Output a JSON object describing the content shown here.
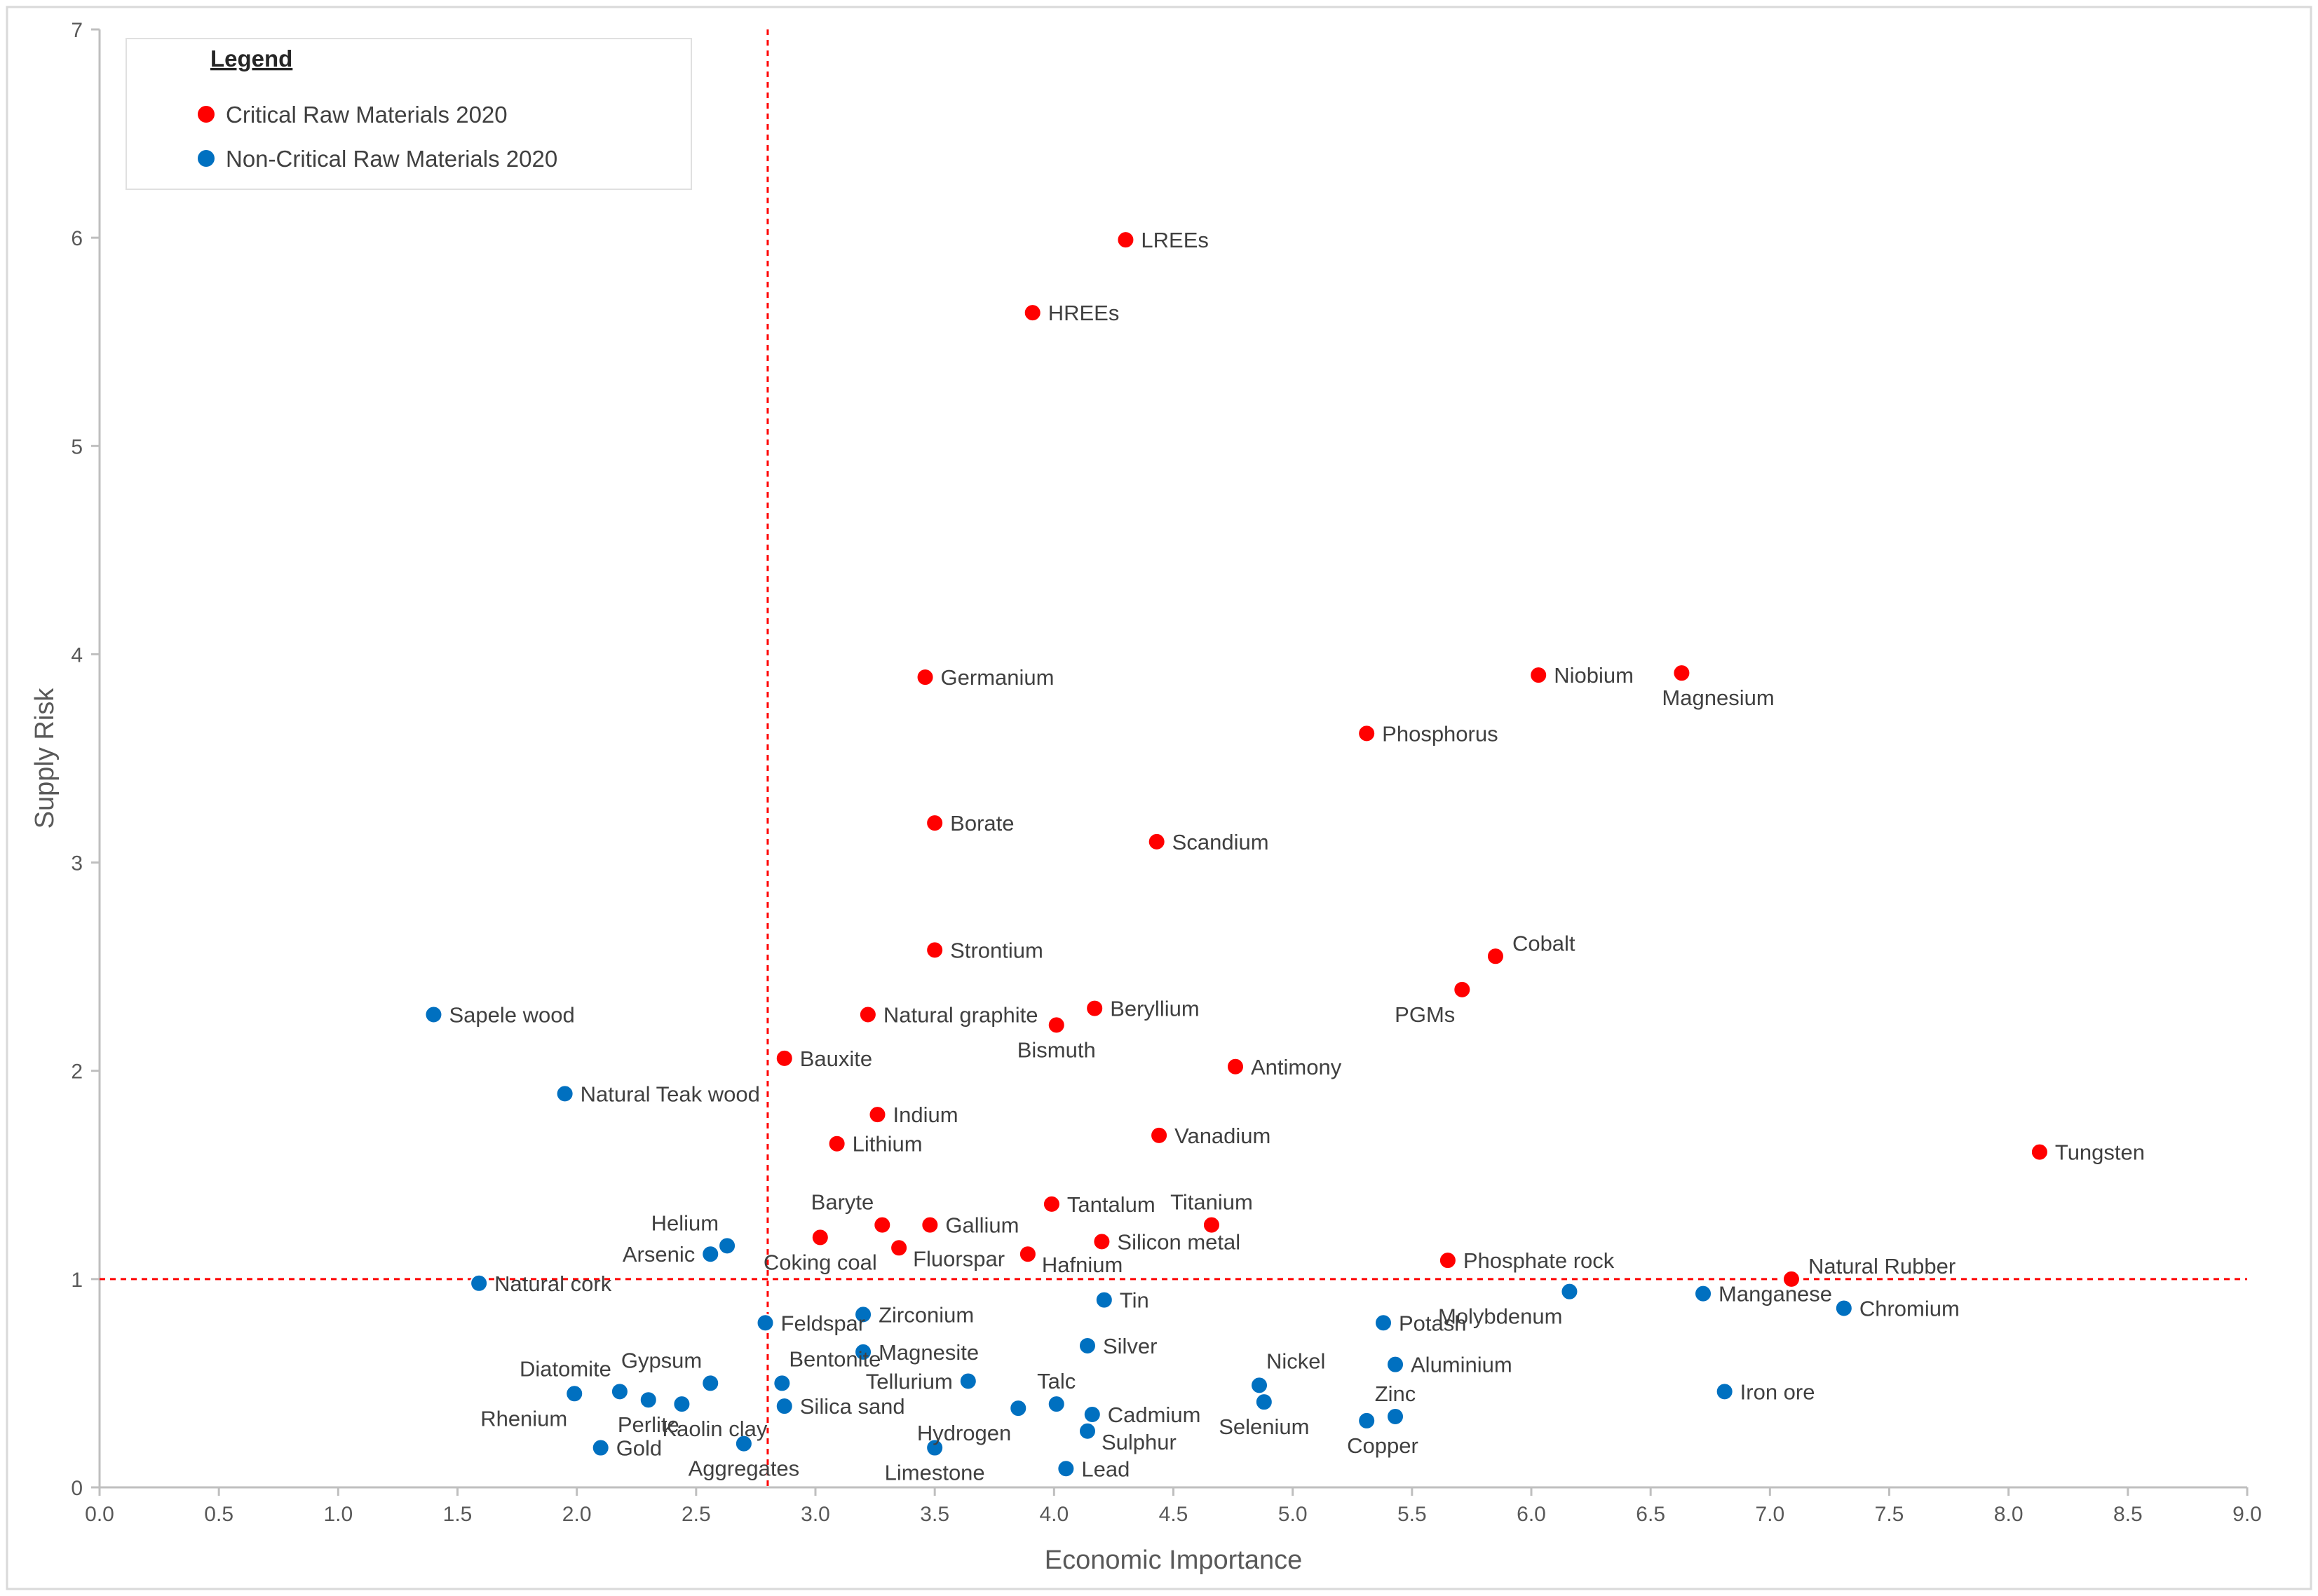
{
  "chart_data": {
    "type": "scatter",
    "title": "",
    "xlabel": "Economic Importance",
    "ylabel": "Supply Risk",
    "xlim": [
      0.0,
      9.0
    ],
    "ylim": [
      0,
      7
    ],
    "xticks": [
      "0.0",
      "0.5",
      "1.0",
      "1.5",
      "2.0",
      "2.5",
      "3.0",
      "3.5",
      "4.0",
      "4.5",
      "5.0",
      "5.5",
      "6.0",
      "6.5",
      "7.0",
      "7.5",
      "8.0",
      "8.5",
      "9.0"
    ],
    "yticks": [
      "0",
      "1",
      "2",
      "3",
      "4",
      "5",
      "6",
      "7"
    ],
    "thresholds": {
      "economic_importance": 2.8,
      "supply_risk": 1.0
    },
    "legend": {
      "title": "Legend",
      "placement": "top-left",
      "entries": [
        {
          "name": "Critical Raw Materials 2020",
          "color": "#ff0000"
        },
        {
          "name": "Non-Critical Raw Materials 2020",
          "color": "#0070c0"
        }
      ]
    },
    "series": [
      {
        "name": "Critical Raw Materials 2020",
        "color": "#ff0000",
        "points": [
          {
            "label": "LREEs",
            "x": 4.3,
            "y": 5.99,
            "pos": "right"
          },
          {
            "label": "HREEs",
            "x": 3.91,
            "y": 5.64,
            "pos": "right"
          },
          {
            "label": "Germanium",
            "x": 3.46,
            "y": 3.89,
            "pos": "right"
          },
          {
            "label": "Niobium",
            "x": 6.03,
            "y": 3.9,
            "pos": "right"
          },
          {
            "label": "Magnesium",
            "x": 6.63,
            "y": 3.91,
            "pos": "below-right"
          },
          {
            "label": "Phosphorus",
            "x": 5.31,
            "y": 3.62,
            "pos": "right"
          },
          {
            "label": "Borate",
            "x": 3.5,
            "y": 3.19,
            "pos": "right"
          },
          {
            "label": "Scandium",
            "x": 4.43,
            "y": 3.1,
            "pos": "right"
          },
          {
            "label": "Strontium",
            "x": 3.5,
            "y": 2.58,
            "pos": "right"
          },
          {
            "label": "Cobalt",
            "x": 5.85,
            "y": 2.55,
            "pos": "right-up"
          },
          {
            "label": "PGMs",
            "x": 5.71,
            "y": 2.39,
            "pos": "below-left"
          },
          {
            "label": "Natural graphite",
            "x": 3.22,
            "y": 2.27,
            "pos": "right"
          },
          {
            "label": "Beryllium",
            "x": 4.17,
            "y": 2.3,
            "pos": "right"
          },
          {
            "label": "Bismuth",
            "x": 4.01,
            "y": 2.22,
            "pos": "below"
          },
          {
            "label": "Bauxite",
            "x": 2.87,
            "y": 2.06,
            "pos": "right"
          },
          {
            "label": "Antimony",
            "x": 4.76,
            "y": 2.02,
            "pos": "right"
          },
          {
            "label": "Indium",
            "x": 3.26,
            "y": 1.79,
            "pos": "right"
          },
          {
            "label": "Vanadium",
            "x": 4.44,
            "y": 1.69,
            "pos": "right"
          },
          {
            "label": "Lithium",
            "x": 3.09,
            "y": 1.65,
            "pos": "right"
          },
          {
            "label": "Tungsten",
            "x": 8.13,
            "y": 1.61,
            "pos": "right"
          },
          {
            "label": "Tantalum",
            "x": 3.99,
            "y": 1.36,
            "pos": "right"
          },
          {
            "label": "Titanium",
            "x": 4.66,
            "y": 1.26,
            "pos": "above"
          },
          {
            "label": "Baryte",
            "x": 3.28,
            "y": 1.26,
            "pos": "above-left"
          },
          {
            "label": "Gallium",
            "x": 3.48,
            "y": 1.26,
            "pos": "right"
          },
          {
            "label": "Silicon metal",
            "x": 4.2,
            "y": 1.18,
            "pos": "right"
          },
          {
            "label": "Coking coal",
            "x": 3.02,
            "y": 1.2,
            "pos": "below"
          },
          {
            "label": "Fluorspar",
            "x": 3.35,
            "y": 1.15,
            "pos": "right-down"
          },
          {
            "label": "Hafnium",
            "x": 3.89,
            "y": 1.12,
            "pos": "right-down"
          },
          {
            "label": "Phosphate rock",
            "x": 5.65,
            "y": 1.09,
            "pos": "right"
          },
          {
            "label": "Natural Rubber",
            "x": 7.09,
            "y": 1.0,
            "pos": "right-up"
          }
        ]
      },
      {
        "name": "Non-Critical Raw Materials 2020",
        "color": "#0070c0",
        "points": [
          {
            "label": "Sapele wood",
            "x": 1.4,
            "y": 2.27,
            "pos": "right"
          },
          {
            "label": "Natural Teak wood",
            "x": 1.95,
            "y": 1.89,
            "pos": "right"
          },
          {
            "label": "Helium",
            "x": 2.63,
            "y": 1.16,
            "pos": "above-left"
          },
          {
            "label": "Arsenic",
            "x": 2.56,
            "y": 1.12,
            "pos": "left"
          },
          {
            "label": "Natural cork",
            "x": 1.59,
            "y": 0.98,
            "pos": "right"
          },
          {
            "label": "Zirconium",
            "x": 3.2,
            "y": 0.83,
            "pos": "right"
          },
          {
            "label": "Feldspar",
            "x": 2.79,
            "y": 0.79,
            "pos": "right"
          },
          {
            "label": "Tin",
            "x": 4.21,
            "y": 0.9,
            "pos": "right"
          },
          {
            "label": "Molybdenum",
            "x": 6.16,
            "y": 0.94,
            "pos": "below-left"
          },
          {
            "label": "Manganese",
            "x": 6.72,
            "y": 0.93,
            "pos": "right"
          },
          {
            "label": "Chromium",
            "x": 7.31,
            "y": 0.86,
            "pos": "right"
          },
          {
            "label": "Potash",
            "x": 5.38,
            "y": 0.79,
            "pos": "right"
          },
          {
            "label": "Magnesite",
            "x": 3.2,
            "y": 0.65,
            "pos": "right"
          },
          {
            "label": "Silver",
            "x": 4.14,
            "y": 0.68,
            "pos": "right"
          },
          {
            "label": "Aluminium",
            "x": 5.43,
            "y": 0.59,
            "pos": "right"
          },
          {
            "label": "Nickel",
            "x": 4.86,
            "y": 0.49,
            "pos": "above-right"
          },
          {
            "label": "Selenium",
            "x": 4.88,
            "y": 0.41,
            "pos": "below"
          },
          {
            "label": "Bentonite",
            "x": 2.86,
            "y": 0.5,
            "pos": "above-right"
          },
          {
            "label": "Gypsum",
            "x": 2.56,
            "y": 0.5,
            "pos": "above-left"
          },
          {
            "label": "Diatomite",
            "x": 2.18,
            "y": 0.46,
            "pos": "above-left"
          },
          {
            "label": "Rhenium",
            "x": 1.99,
            "y": 0.45,
            "pos": "below-left"
          },
          {
            "label": "Perlite",
            "x": 2.3,
            "y": 0.42,
            "pos": "below"
          },
          {
            "label": "Kaolin clay",
            "x": 2.44,
            "y": 0.4,
            "pos": "below-right"
          },
          {
            "label": "Tellurium",
            "x": 3.64,
            "y": 0.51,
            "pos": "left"
          },
          {
            "label": "Talc",
            "x": 4.01,
            "y": 0.4,
            "pos": "above"
          },
          {
            "label": "Hydrogen",
            "x": 3.85,
            "y": 0.38,
            "pos": "below-left"
          },
          {
            "label": "Cadmium",
            "x": 4.16,
            "y": 0.35,
            "pos": "right"
          },
          {
            "label": "Sulphur",
            "x": 4.14,
            "y": 0.27,
            "pos": "right-down"
          },
          {
            "label": "Silica sand",
            "x": 2.87,
            "y": 0.39,
            "pos": "right"
          },
          {
            "label": "Zinc",
            "x": 5.43,
            "y": 0.34,
            "pos": "above"
          },
          {
            "label": "Copper",
            "x": 5.31,
            "y": 0.32,
            "pos": "below-right"
          },
          {
            "label": "Iron ore",
            "x": 6.81,
            "y": 0.46,
            "pos": "right"
          },
          {
            "label": "Gold",
            "x": 2.1,
            "y": 0.19,
            "pos": "right"
          },
          {
            "label": "Aggregates",
            "x": 2.7,
            "y": 0.21,
            "pos": "below"
          },
          {
            "label": "Limestone",
            "x": 3.5,
            "y": 0.19,
            "pos": "below"
          },
          {
            "label": "Lead",
            "x": 4.05,
            "y": 0.09,
            "pos": "right"
          }
        ]
      }
    ]
  }
}
